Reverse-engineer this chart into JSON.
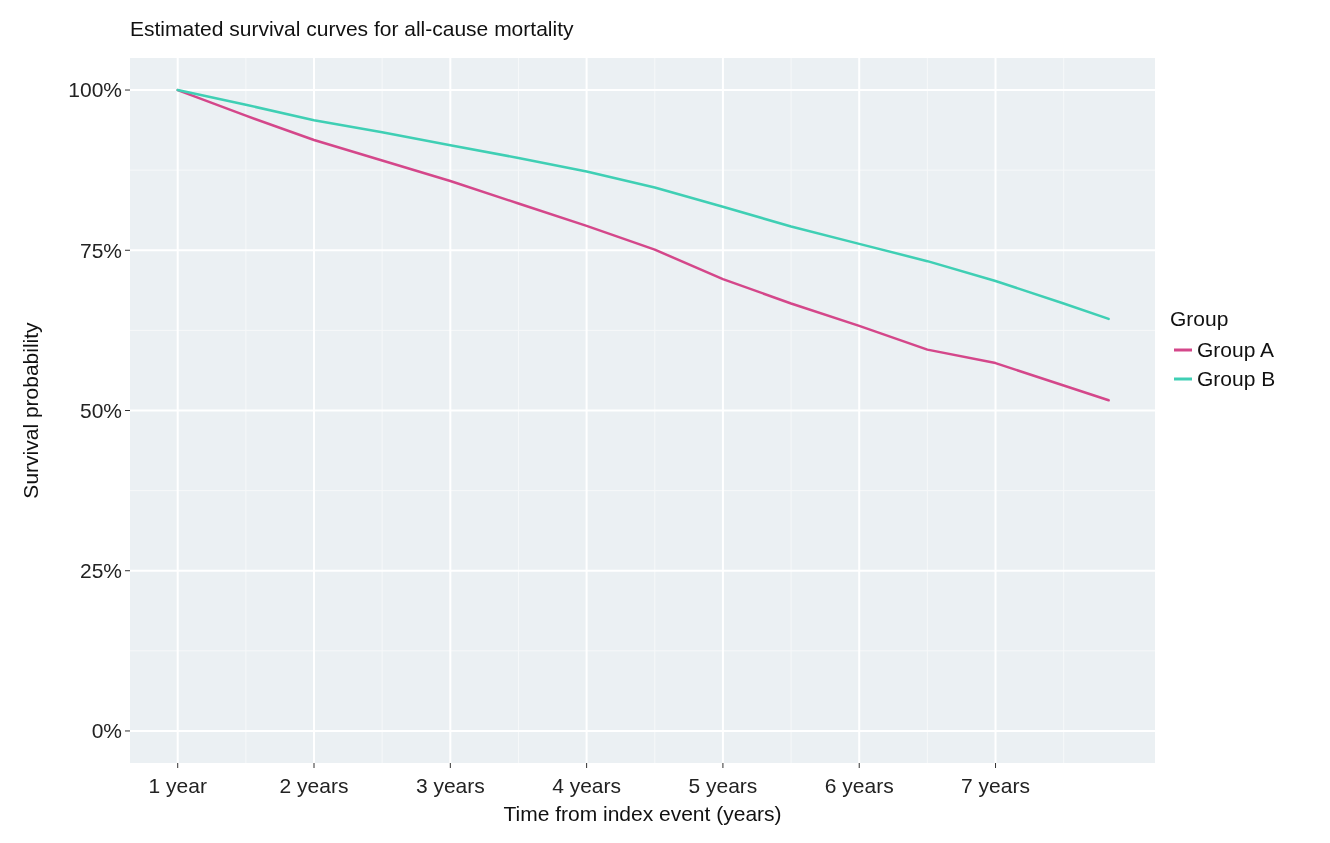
{
  "chart_data": {
    "type": "line",
    "title": "Estimated survival curves for all-cause mortality",
    "xlabel": "Time from index event (years)",
    "ylabel": "Survival probability",
    "legend_title": "Group",
    "xlim": [
      0.65,
      8.17
    ],
    "xticks": [
      {
        "value": 1,
        "label": "1 year"
      },
      {
        "value": 2,
        "label": "2 years"
      },
      {
        "value": 3,
        "label": "3 years"
      },
      {
        "value": 4,
        "label": "4 years"
      },
      {
        "value": 5,
        "label": "5 years"
      },
      {
        "value": 6,
        "label": "6 years"
      },
      {
        "value": 7,
        "label": "7 years"
      }
    ],
    "ylim": [
      -5,
      105
    ],
    "yticks": [
      {
        "value": 0,
        "label": "0%"
      },
      {
        "value": 25,
        "label": "25%"
      },
      {
        "value": 50,
        "label": "50%"
      },
      {
        "value": 75,
        "label": "75%"
      },
      {
        "value": 100,
        "label": "100%"
      }
    ],
    "grid": true,
    "legend": "right",
    "marker": "none",
    "line_style": "solid",
    "series": [
      {
        "name": "Group A",
        "color": "#d4478a",
        "x": [
          1,
          1.5,
          2,
          2.5,
          3,
          3.5,
          4,
          4.5,
          5,
          5.5,
          6,
          6.5,
          7,
          7.5,
          7.83
        ],
        "values": [
          100,
          96,
          92.2,
          89,
          85.8,
          82.3,
          78.8,
          75.1,
          70.5,
          66.7,
          63.2,
          59.5,
          57.4,
          53.9,
          51.6
        ]
      },
      {
        "name": "Group B",
        "color": "#3fcfb4",
        "x": [
          1,
          1.5,
          2,
          2.5,
          3,
          3.5,
          4,
          4.5,
          5,
          5.5,
          6,
          6.5,
          7,
          7.5,
          7.83
        ],
        "values": [
          100,
          97.7,
          95.3,
          93.4,
          91.4,
          89.4,
          87.3,
          84.8,
          81.8,
          78.7,
          76,
          73.3,
          70.2,
          66.7,
          64.3
        ]
      }
    ]
  }
}
